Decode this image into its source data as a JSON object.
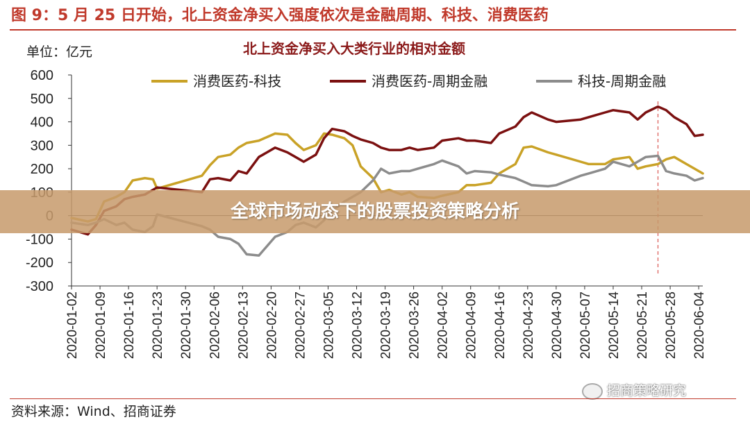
{
  "figure": {
    "title": "图 9：5 月 25 日开始，北上资金净买入强度依次是金融周期、科技、消费医药",
    "source": "资料来源：Wind、招商证券",
    "watermark": "招商策略研究",
    "watermark_icon": "wechat-icon"
  },
  "banner": {
    "text": "全球市场动态下的股票投资策略分析",
    "color": "#c79b6c"
  },
  "chart_data": {
    "type": "line",
    "title": "北上资金净买入大类行业的相对金额",
    "unit_label": "单位：亿元",
    "ylim": [
      -300,
      600
    ],
    "yticks": [
      -300,
      -200,
      -100,
      0,
      100,
      200,
      300,
      400,
      500,
      600
    ],
    "grid": false,
    "legend_position": "top",
    "x_tick_labels": [
      "2020-01-02",
      "2020-01-09",
      "2020-01-16",
      "2020-01-23",
      "2020-01-30",
      "2020-02-06",
      "2020-02-13",
      "2020-02-20",
      "2020-02-27",
      "2020-03-05",
      "2020-03-12",
      "2020-03-19",
      "2020-03-26",
      "2020-04-02",
      "2020-04-09",
      "2020-04-16",
      "2020-04-23",
      "2020-04-30",
      "2020-05-07",
      "2020-05-14",
      "2020-05-21",
      "2020-05-28",
      "2020-06-04"
    ],
    "x_range": [
      "2020-01-02",
      "2020-06-05"
    ],
    "vline": {
      "date": "2020-05-25",
      "color": "#d9534f",
      "style": "dashed"
    },
    "series": [
      {
        "name": "消费医药-科技",
        "color": "#c9a227",
        "points": [
          [
            "2020-01-02",
            -10
          ],
          [
            "2020-01-06",
            -25
          ],
          [
            "2020-01-08",
            -15
          ],
          [
            "2020-01-10",
            60
          ],
          [
            "2020-01-13",
            80
          ],
          [
            "2020-01-15",
            100
          ],
          [
            "2020-01-17",
            150
          ],
          [
            "2020-01-20",
            160
          ],
          [
            "2020-01-22",
            155
          ],
          [
            "2020-01-23",
            115
          ],
          [
            "2020-02-03",
            170
          ],
          [
            "2020-02-05",
            215
          ],
          [
            "2020-02-07",
            250
          ],
          [
            "2020-02-10",
            260
          ],
          [
            "2020-02-12",
            290
          ],
          [
            "2020-02-14",
            310
          ],
          [
            "2020-02-17",
            320
          ],
          [
            "2020-02-19",
            335
          ],
          [
            "2020-02-21",
            350
          ],
          [
            "2020-02-24",
            345
          ],
          [
            "2020-02-26",
            310
          ],
          [
            "2020-02-28",
            280
          ],
          [
            "2020-03-02",
            300
          ],
          [
            "2020-03-04",
            350
          ],
          [
            "2020-03-06",
            345
          ],
          [
            "2020-03-09",
            330
          ],
          [
            "2020-03-11",
            300
          ],
          [
            "2020-03-13",
            210
          ],
          [
            "2020-03-16",
            160
          ],
          [
            "2020-03-18",
            100
          ],
          [
            "2020-03-20",
            110
          ],
          [
            "2020-03-23",
            90
          ],
          [
            "2020-03-25",
            100
          ],
          [
            "2020-03-27",
            80
          ],
          [
            "2020-03-31",
            75
          ],
          [
            "2020-04-02",
            85
          ],
          [
            "2020-04-06",
            100
          ],
          [
            "2020-04-08",
            130
          ],
          [
            "2020-04-10",
            130
          ],
          [
            "2020-04-14",
            140
          ],
          [
            "2020-04-16",
            180
          ],
          [
            "2020-04-20",
            220
          ],
          [
            "2020-04-22",
            290
          ],
          [
            "2020-04-24",
            295
          ],
          [
            "2020-04-28",
            270
          ],
          [
            "2020-04-30",
            260
          ],
          [
            "2020-05-06",
            230
          ],
          [
            "2020-05-08",
            220
          ],
          [
            "2020-05-12",
            220
          ],
          [
            "2020-05-14",
            240
          ],
          [
            "2020-05-18",
            250
          ],
          [
            "2020-05-20",
            200
          ],
          [
            "2020-05-22",
            210
          ],
          [
            "2020-05-25",
            220
          ],
          [
            "2020-05-27",
            240
          ],
          [
            "2020-05-29",
            250
          ],
          [
            "2020-06-01",
            220
          ],
          [
            "2020-06-03",
            200
          ],
          [
            "2020-06-05",
            180
          ]
        ]
      },
      {
        "name": "消费医药-周期金融",
        "color": "#7b1010",
        "points": [
          [
            "2020-01-02",
            -60
          ],
          [
            "2020-01-06",
            -80
          ],
          [
            "2020-01-08",
            -40
          ],
          [
            "2020-01-10",
            20
          ],
          [
            "2020-01-13",
            40
          ],
          [
            "2020-01-15",
            70
          ],
          [
            "2020-01-17",
            80
          ],
          [
            "2020-01-20",
            90
          ],
          [
            "2020-01-22",
            110
          ],
          [
            "2020-01-23",
            120
          ],
          [
            "2020-02-03",
            100
          ],
          [
            "2020-02-05",
            155
          ],
          [
            "2020-02-07",
            160
          ],
          [
            "2020-02-10",
            150
          ],
          [
            "2020-02-12",
            190
          ],
          [
            "2020-02-14",
            180
          ],
          [
            "2020-02-17",
            250
          ],
          [
            "2020-02-19",
            270
          ],
          [
            "2020-02-21",
            290
          ],
          [
            "2020-02-24",
            270
          ],
          [
            "2020-02-26",
            250
          ],
          [
            "2020-02-28",
            230
          ],
          [
            "2020-03-02",
            260
          ],
          [
            "2020-03-04",
            330
          ],
          [
            "2020-03-06",
            370
          ],
          [
            "2020-03-09",
            360
          ],
          [
            "2020-03-11",
            340
          ],
          [
            "2020-03-13",
            325
          ],
          [
            "2020-03-16",
            310
          ],
          [
            "2020-03-18",
            290
          ],
          [
            "2020-03-20",
            280
          ],
          [
            "2020-03-23",
            280
          ],
          [
            "2020-03-25",
            290
          ],
          [
            "2020-03-27",
            280
          ],
          [
            "2020-03-31",
            290
          ],
          [
            "2020-04-02",
            320
          ],
          [
            "2020-04-06",
            330
          ],
          [
            "2020-04-08",
            320
          ],
          [
            "2020-04-10",
            320
          ],
          [
            "2020-04-14",
            310
          ],
          [
            "2020-04-16",
            350
          ],
          [
            "2020-04-20",
            380
          ],
          [
            "2020-04-22",
            420
          ],
          [
            "2020-04-24",
            440
          ],
          [
            "2020-04-28",
            410
          ],
          [
            "2020-04-30",
            400
          ],
          [
            "2020-05-06",
            410
          ],
          [
            "2020-05-08",
            420
          ],
          [
            "2020-05-12",
            440
          ],
          [
            "2020-05-14",
            450
          ],
          [
            "2020-05-18",
            440
          ],
          [
            "2020-05-20",
            410
          ],
          [
            "2020-05-22",
            440
          ],
          [
            "2020-05-25",
            465
          ],
          [
            "2020-05-27",
            450
          ],
          [
            "2020-05-29",
            420
          ],
          [
            "2020-06-01",
            390
          ],
          [
            "2020-06-03",
            340
          ],
          [
            "2020-06-05",
            345
          ]
        ]
      },
      {
        "name": "科技-周期金融",
        "color": "#8c8c8c",
        "points": [
          [
            "2020-01-02",
            -30
          ],
          [
            "2020-01-06",
            -40
          ],
          [
            "2020-01-08",
            -30
          ],
          [
            "2020-01-10",
            -15
          ],
          [
            "2020-01-13",
            -40
          ],
          [
            "2020-01-15",
            -30
          ],
          [
            "2020-01-17",
            -60
          ],
          [
            "2020-01-20",
            -70
          ],
          [
            "2020-01-22",
            -45
          ],
          [
            "2020-01-23",
            5
          ],
          [
            "2020-02-03",
            -45
          ],
          [
            "2020-02-05",
            -60
          ],
          [
            "2020-02-07",
            -90
          ],
          [
            "2020-02-10",
            -100
          ],
          [
            "2020-02-12",
            -120
          ],
          [
            "2020-02-14",
            -165
          ],
          [
            "2020-02-17",
            -170
          ],
          [
            "2020-02-19",
            -130
          ],
          [
            "2020-02-21",
            -90
          ],
          [
            "2020-02-24",
            -70
          ],
          [
            "2020-02-26",
            -40
          ],
          [
            "2020-02-28",
            -30
          ],
          [
            "2020-03-02",
            -50
          ],
          [
            "2020-03-04",
            -20
          ],
          [
            "2020-03-06",
            20
          ],
          [
            "2020-03-09",
            60
          ],
          [
            "2020-03-11",
            80
          ],
          [
            "2020-03-13",
            100
          ],
          [
            "2020-03-16",
            150
          ],
          [
            "2020-03-18",
            200
          ],
          [
            "2020-03-20",
            180
          ],
          [
            "2020-03-23",
            190
          ],
          [
            "2020-03-25",
            190
          ],
          [
            "2020-03-27",
            200
          ],
          [
            "2020-03-31",
            220
          ],
          [
            "2020-04-02",
            235
          ],
          [
            "2020-04-06",
            210
          ],
          [
            "2020-04-08",
            180
          ],
          [
            "2020-04-10",
            190
          ],
          [
            "2020-04-14",
            185
          ],
          [
            "2020-04-16",
            175
          ],
          [
            "2020-04-20",
            160
          ],
          [
            "2020-04-22",
            145
          ],
          [
            "2020-04-24",
            130
          ],
          [
            "2020-04-28",
            125
          ],
          [
            "2020-04-30",
            130
          ],
          [
            "2020-05-06",
            170
          ],
          [
            "2020-05-08",
            180
          ],
          [
            "2020-05-12",
            200
          ],
          [
            "2020-05-14",
            230
          ],
          [
            "2020-05-18",
            210
          ],
          [
            "2020-05-20",
            230
          ],
          [
            "2020-05-22",
            250
          ],
          [
            "2020-05-25",
            255
          ],
          [
            "2020-05-27",
            190
          ],
          [
            "2020-05-29",
            180
          ],
          [
            "2020-06-01",
            170
          ],
          [
            "2020-06-03",
            150
          ],
          [
            "2020-06-05",
            160
          ]
        ]
      }
    ]
  }
}
